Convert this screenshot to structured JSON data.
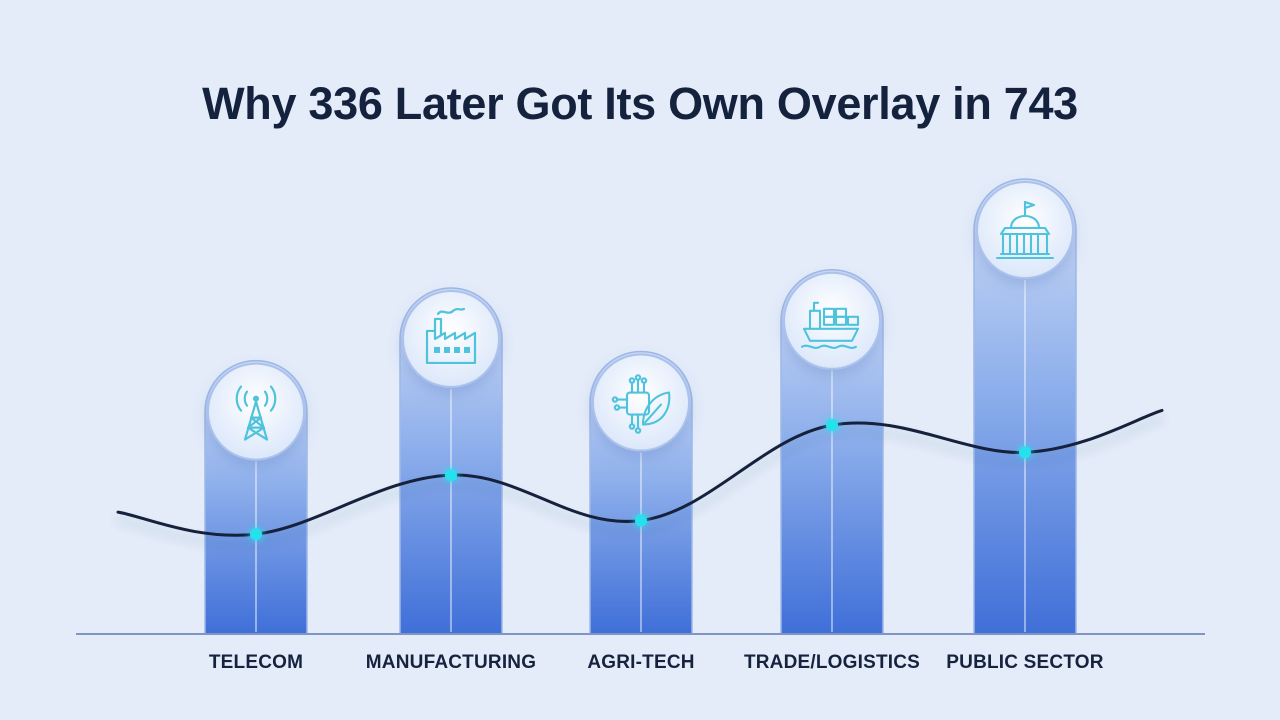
{
  "title": "Why 336 Later Got Its Own Overlay in 743",
  "colors": {
    "background": "#e4ecf9",
    "bar_top": "#cfdcf5",
    "bar_bottom": "#3f6fd8",
    "line": "#13203a",
    "marker": "#25e0ee",
    "icon": "#4fc3dc"
  },
  "chart_data": {
    "type": "bar",
    "title": "Why 336 Later Got Its Own Overlay in 743",
    "categories": [
      "TELECOM",
      "MANUFACTURING",
      "AGRI-TECH",
      "TRADE/LOGISTICS",
      "PUBLIC SECTOR"
    ],
    "icons": [
      "cell-tower-icon",
      "factory-icon",
      "circuit-leaf-icon",
      "cargo-ship-icon",
      "capitol-building-icon"
    ],
    "series": [
      {
        "type": "bar",
        "values": [
          60,
          76,
          62,
          80,
          100
        ]
      },
      {
        "type": "line",
        "values": [
          22,
          35,
          25,
          46,
          40
        ]
      }
    ],
    "ylim": [
      0,
      100
    ],
    "axes_visible": false,
    "grid": false,
    "legend": "none"
  }
}
